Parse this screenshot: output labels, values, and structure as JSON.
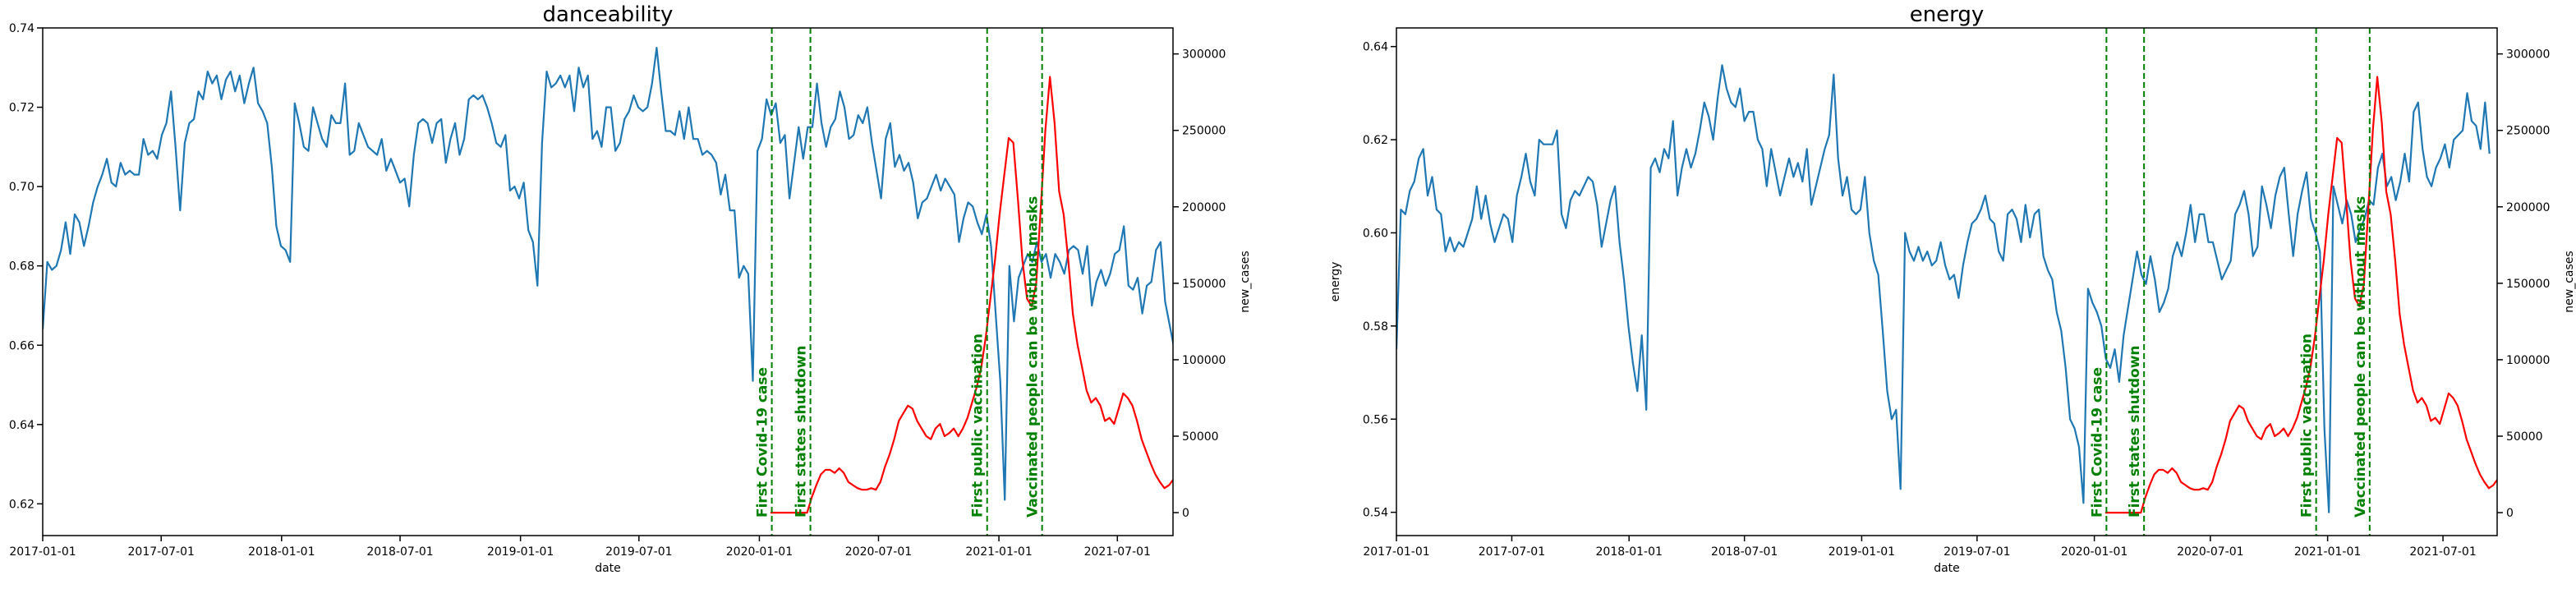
{
  "chart_data": [
    {
      "type": "line",
      "title": "danceability",
      "xlabel": "date",
      "ylabel": "danceability",
      "ylabel_right": "new_cases",
      "x_ticks": [
        "2017-01-01",
        "2017-07-01",
        "2018-01-01",
        "2018-07-01",
        "2019-01-01",
        "2019-07-01",
        "2020-01-01",
        "2020-07-01",
        "2021-01-01",
        "2021-07-01"
      ],
      "y_ticks": [
        "0.62",
        "0.64",
        "0.66",
        "0.68",
        "0.70",
        "0.72",
        "0.74"
      ],
      "y2_ticks": [
        "0",
        "50000",
        "100000",
        "150000",
        "200000",
        "250000",
        "300000"
      ],
      "xlim": [
        "2017-01-01",
        "2021-09-24"
      ],
      "ylim": [
        0.612,
        0.74
      ],
      "y2lim": [
        -15000,
        317000
      ],
      "grid": false,
      "series_color": "#1f77b4",
      "cases_color": "#ff0000",
      "annotation_color": "#008000",
      "annotations": [
        {
          "date": "2020-01-20",
          "label": "First Covid-19 case"
        },
        {
          "date": "2020-03-19",
          "label": "First states shutdown"
        },
        {
          "date": "2020-12-14",
          "label": "First public vaccination"
        },
        {
          "date": "2021-03-08",
          "label": "Vaccinated people can be without masks"
        }
      ],
      "series": [
        {
          "start": "2017-01-01",
          "step_days": 7,
          "values": [
            0.664,
            0.681,
            0.679,
            0.68,
            0.684,
            0.691,
            0.683,
            0.693,
            0.691,
            0.685,
            0.69,
            0.696,
            0.7,
            0.703,
            0.707,
            0.701,
            0.7,
            0.706,
            0.703,
            0.704,
            0.703,
            0.703,
            0.712,
            0.708,
            0.709,
            0.707,
            0.713,
            0.716,
            0.724,
            0.71,
            0.694,
            0.711,
            0.716,
            0.717,
            0.724,
            0.722,
            0.729,
            0.726,
            0.728,
            0.722,
            0.727,
            0.729,
            0.724,
            0.728,
            0.721,
            0.726,
            0.73,
            0.721,
            0.719,
            0.716,
            0.705,
            0.69,
            0.685,
            0.684,
            0.681,
            0.721,
            0.716,
            0.71,
            0.709,
            0.72,
            0.716,
            0.712,
            0.71,
            0.718,
            0.716,
            0.716,
            0.726,
            0.708,
            0.709,
            0.716,
            0.713,
            0.71,
            0.709,
            0.708,
            0.712,
            0.704,
            0.707,
            0.704,
            0.701,
            0.702,
            0.695,
            0.708,
            0.716,
            0.717,
            0.716,
            0.711,
            0.716,
            0.717,
            0.706,
            0.712,
            0.716,
            0.708,
            0.712,
            0.722,
            0.723,
            0.722,
            0.723,
            0.72,
            0.716,
            0.711,
            0.71,
            0.713,
            0.699,
            0.7,
            0.697,
            0.701,
            0.689,
            0.686,
            0.675,
            0.711,
            0.729,
            0.725,
            0.726,
            0.728,
            0.725,
            0.728,
            0.719,
            0.73,
            0.725,
            0.728,
            0.712,
            0.714,
            0.71,
            0.72,
            0.72,
            0.709,
            0.711,
            0.717,
            0.719,
            0.723,
            0.72,
            0.719,
            0.72,
            0.726,
            0.735,
            0.724,
            0.714,
            0.714,
            0.713,
            0.719,
            0.712,
            0.72,
            0.712,
            0.712,
            0.708,
            0.709,
            0.708,
            0.706,
            0.698,
            0.703,
            0.694,
            0.694,
            0.677,
            0.68,
            0.678,
            0.651,
            0.709,
            0.712,
            0.722,
            0.718,
            0.721,
            0.711,
            0.713,
            0.697,
            0.706,
            0.715,
            0.707,
            0.715,
            0.715,
            0.726,
            0.716,
            0.71,
            0.715,
            0.717,
            0.724,
            0.72,
            0.712,
            0.713,
            0.718,
            0.716,
            0.72,
            0.711,
            0.704,
            0.697,
            0.712,
            0.716,
            0.705,
            0.708,
            0.704,
            0.706,
            0.701,
            0.692,
            0.696,
            0.697,
            0.7,
            0.703,
            0.699,
            0.702,
            0.7,
            0.698,
            0.686,
            0.692,
            0.696,
            0.695,
            0.691,
            0.688,
            0.693,
            0.685,
            0.668,
            0.651,
            0.621,
            0.68,
            0.666,
            0.677,
            0.68,
            0.683,
            0.681,
            0.686,
            0.681,
            0.683,
            0.677,
            0.683,
            0.681,
            0.678,
            0.684,
            0.685,
            0.684,
            0.678,
            0.685,
            0.67,
            0.676,
            0.679,
            0.675,
            0.678,
            0.683,
            0.684,
            0.69,
            0.675,
            0.674,
            0.677,
            0.668,
            0.675,
            0.676,
            0.684,
            0.686,
            0.671,
            0.665,
            0.659,
            0.657,
            0.664,
            0.684
          ]
        },
        {
          "start": "2020-01-18",
          "step_days": 7,
          "values": [
            0,
            0,
            0,
            0,
            0,
            0,
            0,
            0,
            0,
            10000,
            18000,
            25000,
            28000,
            28000,
            26000,
            29000,
            26000,
            20000,
            18000,
            16000,
            15000,
            15000,
            16000,
            15000,
            20000,
            30000,
            38000,
            48000,
            60000,
            65000,
            70000,
            68000,
            60000,
            55000,
            50000,
            48000,
            55000,
            58000,
            50000,
            52000,
            55000,
            50000,
            55000,
            62000,
            72000,
            82000,
            95000,
            115000,
            140000,
            165000,
            195000,
            220000,
            245000,
            242000,
            205000,
            165000,
            140000,
            135000,
            150000,
            200000,
            250000,
            285000,
            255000,
            210000,
            195000,
            165000,
            130000,
            110000,
            95000,
            80000,
            72000,
            75000,
            70000,
            60000,
            62000,
            58000,
            68000,
            78000,
            75000,
            70000,
            60000,
            48000,
            40000,
            32000,
            25000,
            20000,
            16000,
            18000,
            22000,
            25000,
            30000,
            45000,
            70000,
            100000,
            130000,
            160000,
            190000,
            215000,
            235000,
            255000,
            252000,
            240000,
            250000,
            245000,
            238000,
            230000,
            215000,
            205000,
            195000
          ]
        }
      ]
    },
    {
      "type": "line",
      "title": "energy",
      "xlabel": "date",
      "ylabel": "energy",
      "ylabel_right": "new_cases",
      "x_ticks": [
        "2017-01-01",
        "2017-07-01",
        "2018-01-01",
        "2018-07-01",
        "2019-01-01",
        "2019-07-01",
        "2020-01-01",
        "2020-07-01",
        "2021-01-01",
        "2021-07-01"
      ],
      "y_ticks": [
        "0.54",
        "0.56",
        "0.58",
        "0.60",
        "0.62",
        "0.64"
      ],
      "y2_ticks": [
        "0",
        "50000",
        "100000",
        "150000",
        "200000",
        "250000",
        "300000"
      ],
      "xlim": [
        "2017-01-01",
        "2021-09-24"
      ],
      "ylim": [
        0.535,
        0.644
      ],
      "y2lim": [
        -15000,
        317000
      ],
      "grid": false,
      "series_color": "#1f77b4",
      "cases_color": "#ff0000",
      "annotation_color": "#008000",
      "annotations": [
        {
          "date": "2020-01-20",
          "label": "First Covid-19 case"
        },
        {
          "date": "2020-03-19",
          "label": "First states shutdown"
        },
        {
          "date": "2020-12-14",
          "label": "First public vaccination"
        },
        {
          "date": "2021-03-08",
          "label": "Vaccinated people can be without masks"
        }
      ],
      "series": [
        {
          "start": "2017-01-01",
          "step_days": 7,
          "values": [
            0.575,
            0.605,
            0.604,
            0.609,
            0.611,
            0.616,
            0.618,
            0.608,
            0.612,
            0.605,
            0.604,
            0.596,
            0.599,
            0.596,
            0.598,
            0.597,
            0.6,
            0.603,
            0.61,
            0.603,
            0.608,
            0.602,
            0.598,
            0.601,
            0.604,
            0.603,
            0.598,
            0.608,
            0.612,
            0.617,
            0.611,
            0.608,
            0.62,
            0.619,
            0.619,
            0.619,
            0.622,
            0.604,
            0.601,
            0.607,
            0.609,
            0.608,
            0.61,
            0.612,
            0.611,
            0.606,
            0.597,
            0.602,
            0.607,
            0.61,
            0.598,
            0.59,
            0.58,
            0.572,
            0.566,
            0.578,
            0.562,
            0.614,
            0.616,
            0.613,
            0.618,
            0.616,
            0.624,
            0.608,
            0.614,
            0.618,
            0.614,
            0.617,
            0.622,
            0.628,
            0.625,
            0.62,
            0.629,
            0.636,
            0.631,
            0.628,
            0.627,
            0.631,
            0.624,
            0.626,
            0.626,
            0.62,
            0.618,
            0.61,
            0.618,
            0.613,
            0.608,
            0.612,
            0.616,
            0.612,
            0.615,
            0.611,
            0.618,
            0.606,
            0.61,
            0.614,
            0.618,
            0.621,
            0.634,
            0.616,
            0.608,
            0.612,
            0.605,
            0.604,
            0.605,
            0.612,
            0.6,
            0.594,
            0.591,
            0.579,
            0.566,
            0.56,
            0.562,
            0.545,
            0.6,
            0.596,
            0.594,
            0.597,
            0.594,
            0.596,
            0.593,
            0.594,
            0.598,
            0.593,
            0.59,
            0.591,
            0.586,
            0.593,
            0.598,
            0.602,
            0.603,
            0.605,
            0.608,
            0.603,
            0.602,
            0.596,
            0.594,
            0.604,
            0.605,
            0.603,
            0.598,
            0.606,
            0.599,
            0.604,
            0.605,
            0.595,
            0.592,
            0.59,
            0.583,
            0.579,
            0.571,
            0.56,
            0.558,
            0.554,
            0.542,
            0.588,
            0.585,
            0.583,
            0.58,
            0.573,
            0.571,
            0.575,
            0.568,
            0.578,
            0.584,
            0.59,
            0.596,
            0.591,
            0.589,
            0.595,
            0.59,
            0.583,
            0.585,
            0.588,
            0.595,
            0.598,
            0.595,
            0.6,
            0.606,
            0.598,
            0.604,
            0.604,
            0.598,
            0.598,
            0.594,
            0.59,
            0.592,
            0.594,
            0.604,
            0.606,
            0.609,
            0.604,
            0.595,
            0.597,
            0.61,
            0.606,
            0.601,
            0.608,
            0.612,
            0.614,
            0.604,
            0.595,
            0.604,
            0.609,
            0.613,
            0.603,
            0.6,
            0.596,
            0.558,
            0.54,
            0.61,
            0.606,
            0.602,
            0.607,
            0.604,
            0.598,
            0.601,
            0.603,
            0.607,
            0.606,
            0.614,
            0.617,
            0.61,
            0.612,
            0.607,
            0.611,
            0.617,
            0.611,
            0.626,
            0.628,
            0.618,
            0.612,
            0.61,
            0.614,
            0.616,
            0.619,
            0.614,
            0.62,
            0.621,
            0.622,
            0.63,
            0.624,
            0.623,
            0.618,
            0.628,
            0.617
          ]
        },
        {
          "start": "2020-01-18",
          "step_days": 7,
          "values": [
            0,
            0,
            0,
            0,
            0,
            0,
            0,
            0,
            0,
            10000,
            18000,
            25000,
            28000,
            28000,
            26000,
            29000,
            26000,
            20000,
            18000,
            16000,
            15000,
            15000,
            16000,
            15000,
            20000,
            30000,
            38000,
            48000,
            60000,
            65000,
            70000,
            68000,
            60000,
            55000,
            50000,
            48000,
            55000,
            58000,
            50000,
            52000,
            55000,
            50000,
            55000,
            62000,
            72000,
            82000,
            95000,
            115000,
            140000,
            165000,
            195000,
            220000,
            245000,
            242000,
            205000,
            165000,
            140000,
            135000,
            150000,
            200000,
            250000,
            285000,
            255000,
            210000,
            195000,
            165000,
            130000,
            110000,
            95000,
            80000,
            72000,
            75000,
            70000,
            60000,
            62000,
            58000,
            68000,
            78000,
            75000,
            70000,
            60000,
            48000,
            40000,
            32000,
            25000,
            20000,
            16000,
            18000,
            22000,
            25000,
            30000,
            45000,
            70000,
            100000,
            130000,
            160000,
            190000,
            215000,
            235000,
            255000,
            252000,
            240000,
            250000,
            245000,
            238000,
            230000,
            215000,
            205000,
            195000
          ]
        }
      ]
    }
  ]
}
